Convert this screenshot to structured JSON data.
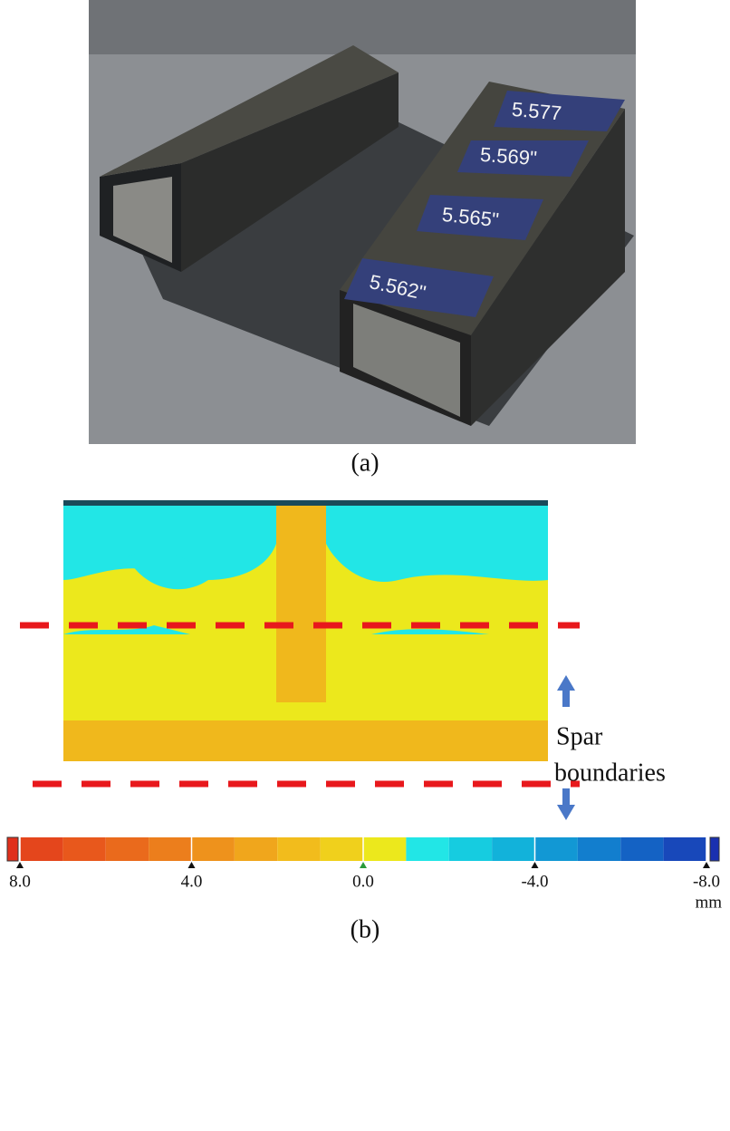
{
  "photo": {
    "label": "(a)",
    "annotations": [
      "5.577",
      "5.569\"",
      "5.565\"",
      "5.562\""
    ]
  },
  "map": {
    "label": "(b)",
    "note": [
      "Spar",
      "boundaries"
    ]
  },
  "colorbar": {
    "unit": "mm",
    "lim": [
      8,
      -8
    ],
    "ticks": [
      {
        "value": 8,
        "label": "8.0"
      },
      {
        "value": 4,
        "label": "4.0"
      },
      {
        "value": 0,
        "label": "0.0"
      },
      {
        "value": -4,
        "label": "-4.0"
      },
      {
        "value": -8,
        "label": "-8.0"
      }
    ],
    "colors": [
      "#e0301c",
      "#e4461c",
      "#e8581c",
      "#ea6a1c",
      "#ec7e1c",
      "#ee921c",
      "#f0a61c",
      "#f2bc1c",
      "#f0d01c",
      "#ece81c",
      "#22e6e6",
      "#16cce0",
      "#12b2da",
      "#1298d4",
      "#127ece",
      "#1462c4",
      "#1848ba",
      "#1a30b0"
    ]
  }
}
